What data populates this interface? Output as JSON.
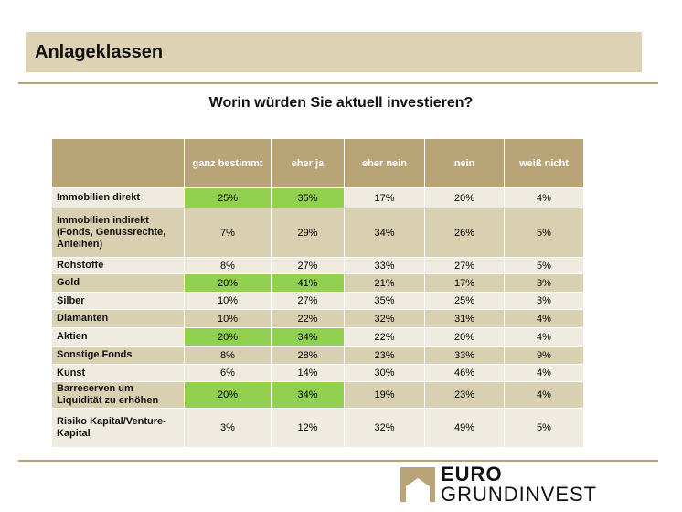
{
  "header": {
    "title": "Anlageklassen"
  },
  "subtitle": "Worin würden Sie aktuell investieren?",
  "columns": [
    "ganz bestimmt",
    "eher ja",
    "eher nein",
    "nein",
    "weiß nicht"
  ],
  "rows": [
    {
      "label": "Immobilien direkt",
      "values": [
        "25%",
        "35%",
        "17%",
        "20%",
        "4%"
      ],
      "highlight": [
        0,
        1
      ]
    },
    {
      "label": "Immobilien indirekt (Fonds, Genussrechte, Anleihen)",
      "values": [
        "7%",
        "29%",
        "34%",
        "26%",
        "5%"
      ],
      "highlight": []
    },
    {
      "label": "Rohstoffe",
      "values": [
        "8%",
        "27%",
        "33%",
        "27%",
        "5%"
      ],
      "highlight": []
    },
    {
      "label": "Gold",
      "values": [
        "20%",
        "41%",
        "21%",
        "17%",
        "3%"
      ],
      "highlight": [
        0,
        1
      ]
    },
    {
      "label": "Silber",
      "values": [
        "10%",
        "27%",
        "35%",
        "25%",
        "3%"
      ],
      "highlight": []
    },
    {
      "label": "Diamanten",
      "values": [
        "10%",
        "22%",
        "32%",
        "31%",
        "4%"
      ],
      "highlight": []
    },
    {
      "label": "Aktien",
      "values": [
        "20%",
        "34%",
        "22%",
        "20%",
        "4%"
      ],
      "highlight": [
        0,
        1
      ]
    },
    {
      "label": "Sonstige Fonds",
      "values": [
        "8%",
        "28%",
        "23%",
        "33%",
        "9%"
      ],
      "highlight": []
    },
    {
      "label": "Kunst",
      "values": [
        "6%",
        "14%",
        "30%",
        "46%",
        "4%"
      ],
      "highlight": []
    },
    {
      "label": "Barreserven um Liquidität zu erhöhen",
      "values": [
        "20%",
        "34%",
        "19%",
        "23%",
        "4%"
      ],
      "highlight": [
        0,
        1
      ]
    },
    {
      "label": "Risiko Kapital/Venture-Kapital",
      "values": [
        "3%",
        "12%",
        "32%",
        "49%",
        "5%"
      ],
      "highlight": []
    }
  ],
  "colors": {
    "header": "#b8a477",
    "highlight": "#92d050",
    "light": "#efebe0",
    "dark": "#d9cfb1"
  },
  "logo": {
    "line1": "EURO",
    "line2": "GRUNDINVEST"
  }
}
